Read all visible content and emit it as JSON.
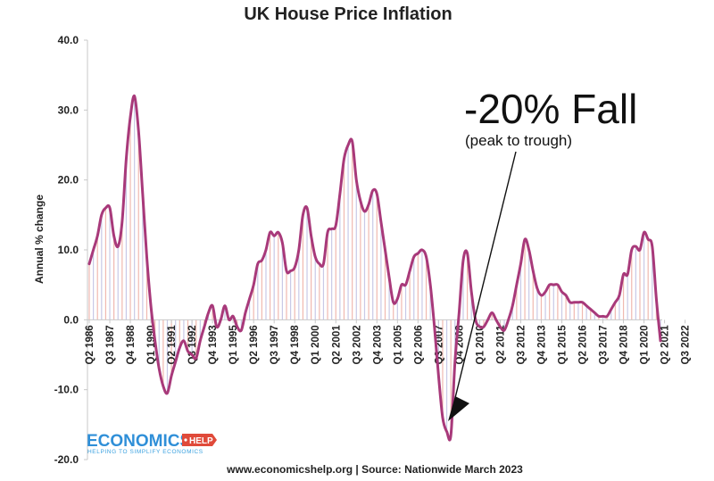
{
  "chart_data": {
    "type": "line",
    "title": "UK House Price Inflation",
    "ylabel": "Annual % change",
    "xlabel": "",
    "ylim": [
      -20,
      40
    ],
    "yticks": [
      "40.0",
      "30.0",
      "20.0",
      "10.0",
      "0.0",
      "-10.0",
      "-20.0"
    ],
    "ytick_values": [
      40,
      30,
      20,
      10,
      0,
      -10,
      -20
    ],
    "grid": false,
    "x_start": "Q2 1986",
    "x_frequency": "quarterly",
    "x_end": "Q1 2023",
    "x_tick_labels": [
      "Q2 1986",
      "Q3 1987",
      "Q4 1988",
      "Q1 1990",
      "Q2 1991",
      "Q3 1992",
      "Q4 1993",
      "Q1 1995",
      "Q2 1996",
      "Q3 1997",
      "Q4 1998",
      "Q1 2000",
      "Q2 2001",
      "Q3 2002",
      "Q4 2003",
      "Q1 2005",
      "Q2 2006",
      "Q3 2007",
      "Q4 2008",
      "Q1 2010",
      "Q2 2011",
      "Q3 2012",
      "Q4 2013",
      "Q1 2015",
      "Q2 2016",
      "Q3 2017",
      "Q4 2018",
      "Q1 2020",
      "Q2 2021",
      "Q3 2022"
    ],
    "series": [
      {
        "color": "#a8397a",
        "bar_colors": [
          "#f0b9b0",
          "#c9c9e6"
        ],
        "values": [
          8,
          10,
          12,
          15,
          16,
          16,
          12,
          10.5,
          14,
          23,
          29,
          32,
          27,
          18,
          9,
          2,
          -3,
          -7,
          -9.5,
          -10.5,
          -8,
          -6,
          -4,
          -3,
          -4.5,
          -5,
          -5.5,
          -3,
          -1,
          1,
          2,
          -1,
          0,
          2,
          0,
          0.5,
          -1,
          -1.5,
          1,
          3,
          5,
          8,
          8.5,
          10,
          12.5,
          12,
          12.5,
          11,
          7,
          7,
          7.5,
          10,
          15,
          16,
          12,
          9,
          8,
          8,
          12.5,
          13,
          13.5,
          18,
          23,
          25,
          25.5,
          20,
          17,
          15.5,
          16.5,
          18.5,
          18,
          14,
          10,
          6,
          2.5,
          3,
          5,
          5,
          7,
          9,
          9.5,
          10,
          9,
          5,
          -1,
          -8,
          -14,
          -16,
          -16.5,
          -6,
          1,
          8.5,
          9.5,
          4,
          0,
          -1,
          -1,
          0,
          1,
          0,
          -1,
          -1.5,
          0,
          2,
          5,
          8,
          11.5,
          10,
          7,
          4.5,
          3.5,
          4,
          5,
          5,
          5,
          4,
          3.5,
          2.5,
          2.5,
          2.5,
          2.5,
          2,
          1.5,
          1,
          0.5,
          0.5,
          0.5,
          1.5,
          2.5,
          3.5,
          6.5,
          6.5,
          10,
          10.5,
          10,
          12.5,
          11.5,
          10.5,
          3,
          -3
        ]
      }
    ],
    "annotations": {
      "main": "-20% Fall",
      "sub": "(peak to trough)"
    }
  },
  "source_text": "www.economicshelp.org | Source: Nationwide March 2023",
  "logo": {
    "main": "ECONOMICS",
    "help": "HELP",
    "tagline": "HELPING TO SIMPLIFY ECONOMICS",
    "colors": {
      "main": "#2f8fd8",
      "help_bg": "#e04a3a"
    }
  }
}
